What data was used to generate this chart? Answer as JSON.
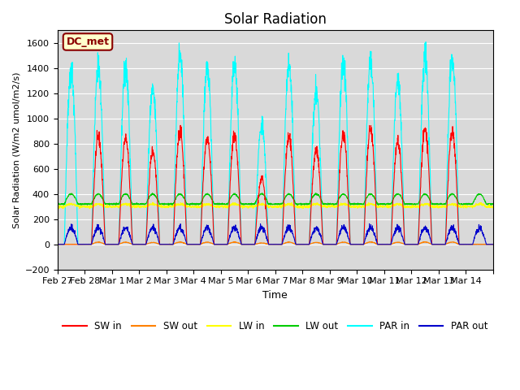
{
  "title": "Solar Radiation",
  "ylabel": "Solar Radiation (W/m2 umol/m2/s)",
  "xlabel": "Time",
  "annotation": "DC_met",
  "ylim": [
    -200,
    1700
  ],
  "yticks": [
    -200,
    0,
    200,
    400,
    600,
    800,
    1000,
    1200,
    1400,
    1600
  ],
  "bg_color": "#d9d9d9",
  "fig_color": "#ffffff",
  "series": {
    "SW_in": {
      "color": "#ff0000",
      "label": "SW in"
    },
    "SW_out": {
      "color": "#ff8000",
      "label": "SW out"
    },
    "LW_in": {
      "color": "#ffff00",
      "label": "LW in"
    },
    "LW_out": {
      "color": "#00cc00",
      "label": "LW out"
    },
    "PAR_in": {
      "color": "#00ffff",
      "label": "PAR in"
    },
    "PAR_out": {
      "color": "#0000cc",
      "label": "PAR out"
    }
  },
  "xtick_positions": [
    0,
    1,
    2,
    3,
    4,
    5,
    6,
    7,
    8,
    9,
    10,
    11,
    12,
    13,
    14,
    15,
    16
  ],
  "xtick_labels": [
    "Feb 27",
    "Feb 28",
    "Mar 1",
    "Mar 2",
    "Mar 3",
    "Mar 4",
    "Mar 5",
    "Mar 6",
    "Mar 7",
    "Mar 8",
    "Mar 9",
    "Mar 10",
    "Mar 11",
    "Mar 12",
    "Mar 13",
    "Mar 14",
    ""
  ],
  "n_days": 16,
  "pts_per_day": 144
}
